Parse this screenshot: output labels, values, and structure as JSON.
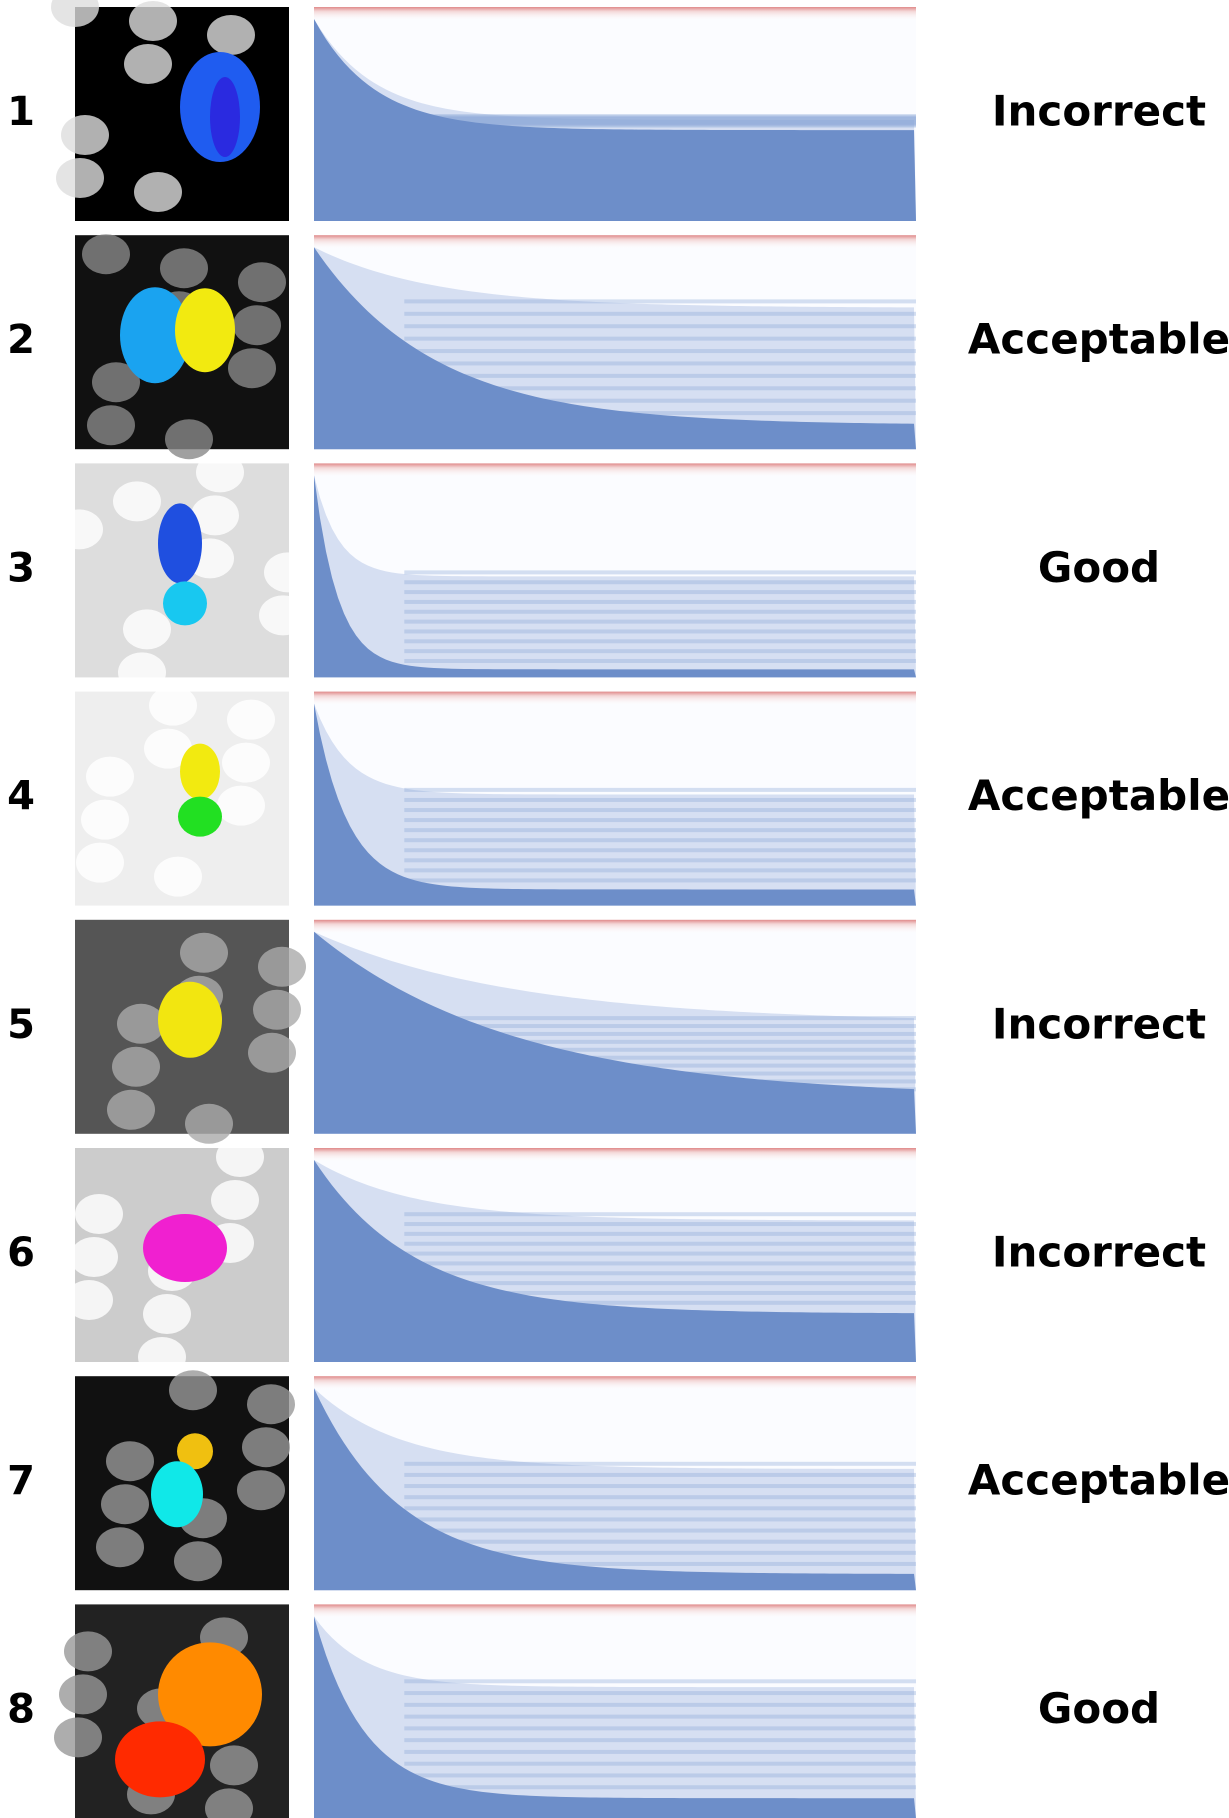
{
  "rows": [
    {
      "number": "1",
      "label": "Incorrect"
    },
    {
      "number": "2",
      "label": "Acceptable"
    },
    {
      "number": "3",
      "label": "Good"
    },
    {
      "number": "4",
      "label": "Acceptable"
    },
    {
      "number": "5",
      "label": "Incorrect"
    },
    {
      "number": "6",
      "label": "Incorrect"
    },
    {
      "number": "7",
      "label": "Acceptable"
    },
    {
      "number": "8",
      "label": "Good"
    }
  ]
}
